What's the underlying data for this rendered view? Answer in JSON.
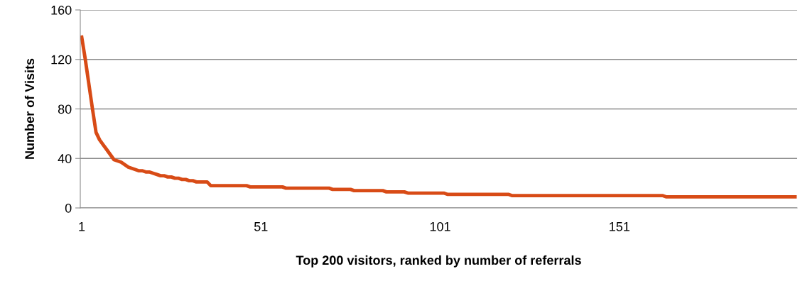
{
  "chart_data": {
    "type": "line",
    "xlabel": "Top 200 visitors, ranked by number of referrals",
    "ylabel": "Number of Visits",
    "categories": [
      "1",
      null,
      null,
      null,
      null,
      null,
      null,
      null,
      null,
      null,
      null,
      null,
      null,
      null,
      null,
      null,
      null,
      null,
      null,
      null,
      null,
      null,
      null,
      null,
      null,
      null,
      null,
      null,
      null,
      null,
      null,
      null,
      null,
      null,
      null,
      null,
      null,
      null,
      null,
      null,
      null,
      null,
      null,
      null,
      null,
      null,
      null,
      null,
      null,
      null,
      "51",
      null,
      null,
      null,
      null,
      null,
      null,
      null,
      null,
      null,
      null,
      null,
      null,
      null,
      null,
      null,
      null,
      null,
      null,
      null,
      null,
      null,
      null,
      null,
      null,
      null,
      null,
      null,
      null,
      null,
      null,
      null,
      null,
      null,
      null,
      null,
      null,
      null,
      null,
      null,
      null,
      null,
      null,
      null,
      null,
      null,
      null,
      null,
      null,
      null,
      "101",
      null,
      null,
      null,
      null,
      null,
      null,
      null,
      null,
      null,
      null,
      null,
      null,
      null,
      null,
      null,
      null,
      null,
      null,
      null,
      null,
      null,
      null,
      null,
      null,
      null,
      null,
      null,
      null,
      null,
      null,
      null,
      null,
      null,
      null,
      null,
      null,
      null,
      null,
      null,
      null,
      null,
      null,
      null,
      null,
      null,
      null,
      null,
      null,
      null,
      "151",
      null,
      null,
      null,
      null,
      null,
      null,
      null,
      null,
      null,
      null,
      null,
      null,
      null,
      null,
      null,
      null,
      null,
      null,
      null,
      null,
      null,
      null,
      null,
      null,
      null,
      null,
      null,
      null,
      null,
      null,
      null,
      null,
      null,
      null,
      null,
      null,
      null,
      null,
      null,
      null,
      null,
      null,
      null,
      null,
      null,
      null,
      null,
      null,
      null
    ],
    "series": [
      {
        "color": "#d84b16",
        "values": [
          138,
          120,
          100,
          80,
          61,
          55,
          51,
          47,
          43,
          39,
          38,
          37,
          35,
          33,
          32,
          31,
          30,
          30,
          29,
          29,
          28,
          27,
          26,
          26,
          25,
          25,
          24,
          24,
          23,
          23,
          22,
          22,
          21,
          21,
          21,
          21,
          18,
          18,
          18,
          18,
          18,
          18,
          18,
          18,
          18,
          18,
          18,
          17,
          17,
          17,
          17,
          17,
          17,
          17,
          17,
          17,
          17,
          16,
          16,
          16,
          16,
          16,
          16,
          16,
          16,
          16,
          16,
          16,
          16,
          16,
          15,
          15,
          15,
          15,
          15,
          15,
          14,
          14,
          14,
          14,
          14,
          14,
          14,
          14,
          14,
          13,
          13,
          13,
          13,
          13,
          13,
          12,
          12,
          12,
          12,
          12,
          12,
          12,
          12,
          12,
          12,
          12,
          11,
          11,
          11,
          11,
          11,
          11,
          11,
          11,
          11,
          11,
          11,
          11,
          11,
          11,
          11,
          11,
          11,
          11,
          10,
          10,
          10,
          10,
          10,
          10,
          10,
          10,
          10,
          10,
          10,
          10,
          10,
          10,
          10,
          10,
          10,
          10,
          10,
          10,
          10,
          10,
          10,
          10,
          10,
          10,
          10,
          10,
          10,
          10,
          10,
          10,
          10,
          10,
          10,
          10,
          10,
          10,
          10,
          10,
          10,
          10,
          10,
          9,
          9,
          9,
          9,
          9,
          9,
          9,
          9,
          9,
          9,
          9,
          9,
          9,
          9,
          9,
          9,
          9,
          9,
          9,
          9,
          9,
          9,
          9,
          9,
          9,
          9,
          9,
          9,
          9,
          9,
          9,
          9,
          9,
          9,
          9,
          9,
          9
        ]
      }
    ],
    "ylim": [
      0,
      160
    ],
    "yticks": [
      0,
      40,
      80,
      120,
      160
    ],
    "grid": "y",
    "legend": false,
    "marker": "none",
    "line_style": "solid"
  }
}
